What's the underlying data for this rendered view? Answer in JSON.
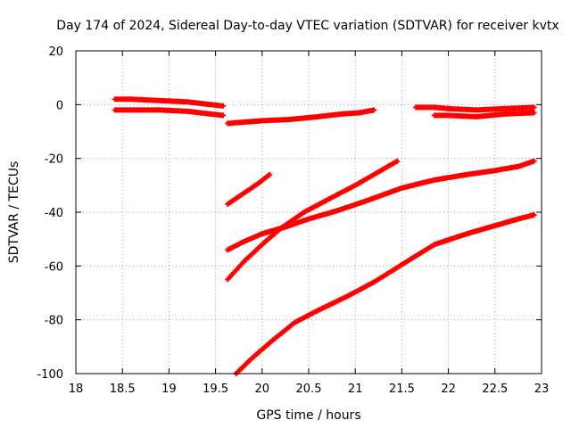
{
  "chart_data": {
    "type": "scatter",
    "title": "Day 174 of 2024, Sidereal Day-to-day VTEC variation (SDTVAR) for receiver kvtx",
    "xlabel": "GPS time / hours",
    "ylabel": "SDTVAR / TECUs",
    "xlim": [
      18,
      23
    ],
    "ylim": [
      -100,
      20
    ],
    "xticks": [
      18,
      18.5,
      19,
      19.5,
      20,
      20.5,
      21,
      21.5,
      22,
      22.5,
      23
    ],
    "xtick_labels": [
      "18",
      "18.5",
      "19",
      "19.5",
      "20",
      "20.5",
      "21",
      "21.5",
      "22",
      "22.5",
      "23"
    ],
    "yticks": [
      -100,
      -80,
      -60,
      -40,
      -20,
      0,
      20
    ],
    "ytick_labels": [
      "-100",
      "-80",
      "-60",
      "-40",
      "-20",
      "0",
      "20"
    ],
    "grid": true,
    "marker": "plus",
    "color": "#ff0000",
    "series": [
      {
        "name": "track-a-upper",
        "points": [
          [
            18.42,
            2
          ],
          [
            18.6,
            2
          ],
          [
            18.9,
            1.5
          ],
          [
            19.2,
            1
          ],
          [
            19.45,
            0
          ],
          [
            19.58,
            -0.5
          ]
        ]
      },
      {
        "name": "track-a-lower",
        "points": [
          [
            18.42,
            -2
          ],
          [
            18.6,
            -2
          ],
          [
            18.9,
            -2
          ],
          [
            19.2,
            -2.5
          ],
          [
            19.45,
            -3.5
          ],
          [
            19.58,
            -4
          ]
        ]
      },
      {
        "name": "track-b",
        "points": [
          [
            19.63,
            -7
          ],
          [
            19.8,
            -6.5
          ],
          [
            20.0,
            -6
          ],
          [
            20.3,
            -5.5
          ],
          [
            20.6,
            -4.5
          ],
          [
            20.85,
            -3.5
          ],
          [
            21.05,
            -3
          ],
          [
            21.2,
            -2
          ]
        ]
      },
      {
        "name": "track-c",
        "points": [
          [
            19.63,
            -37
          ],
          [
            19.8,
            -33
          ],
          [
            19.95,
            -29.5
          ],
          [
            20.08,
            -26
          ]
        ]
      },
      {
        "name": "track-d",
        "points": [
          [
            19.63,
            -54
          ],
          [
            19.8,
            -51
          ],
          [
            20.0,
            -48
          ],
          [
            20.25,
            -45.5
          ],
          [
            20.5,
            -42.5
          ],
          [
            20.8,
            -39.5
          ],
          [
            21.1,
            -36
          ],
          [
            21.5,
            -31
          ],
          [
            21.85,
            -28
          ],
          [
            22.2,
            -26
          ],
          [
            22.5,
            -24.5
          ],
          [
            22.75,
            -23
          ],
          [
            22.92,
            -21
          ]
        ]
      },
      {
        "name": "track-e",
        "points": [
          [
            19.63,
            -65
          ],
          [
            19.8,
            -58.5
          ],
          [
            20.0,
            -52
          ],
          [
            20.2,
            -46
          ],
          [
            20.45,
            -40
          ],
          [
            20.75,
            -34.5
          ],
          [
            21.0,
            -30
          ],
          [
            21.2,
            -26
          ],
          [
            21.45,
            -21
          ]
        ]
      },
      {
        "name": "track-f",
        "points": [
          [
            19.72,
            -100
          ],
          [
            19.9,
            -94
          ],
          [
            20.1,
            -88
          ],
          [
            20.35,
            -81
          ],
          [
            20.6,
            -76.5
          ],
          [
            20.9,
            -71.5
          ],
          [
            21.2,
            -66
          ],
          [
            21.5,
            -59.5
          ],
          [
            21.85,
            -52
          ],
          [
            22.2,
            -48
          ],
          [
            22.5,
            -45
          ],
          [
            22.75,
            -42.5
          ],
          [
            22.92,
            -41
          ]
        ]
      },
      {
        "name": "track-g-upper",
        "points": [
          [
            21.65,
            -1
          ],
          [
            21.85,
            -1
          ],
          [
            22.0,
            -1.5
          ],
          [
            22.3,
            -2
          ],
          [
            22.6,
            -1.5
          ],
          [
            22.92,
            -1
          ]
        ]
      },
      {
        "name": "track-g-lower",
        "points": [
          [
            21.85,
            -4
          ],
          [
            22.0,
            -4
          ],
          [
            22.3,
            -4.5
          ],
          [
            22.6,
            -3.5
          ],
          [
            22.92,
            -3
          ]
        ]
      }
    ]
  }
}
